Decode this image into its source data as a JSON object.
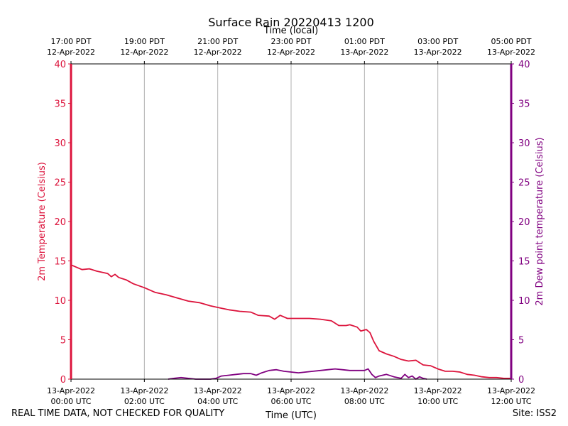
{
  "chart_data": {
    "type": "line",
    "title": "Surface Rain 20220413 1200",
    "top_axis_label": "Time (local)",
    "xlabel": "Time (UTC)",
    "ylabel_left": "2m Temperature (Celsius)",
    "ylabel_right": "2m Dew point temperature (Celsius)",
    "xlim_hours": [
      0,
      12
    ],
    "ylim": [
      0,
      40
    ],
    "yticks": [
      0,
      5,
      10,
      15,
      20,
      25,
      30,
      35,
      40
    ],
    "grid": "vertical",
    "bottom_ticks": [
      {
        "hour": 0,
        "line1": "13-Apr-2022",
        "line2": "00:00 UTC"
      },
      {
        "hour": 2,
        "line1": "13-Apr-2022",
        "line2": "02:00 UTC"
      },
      {
        "hour": 4,
        "line1": "13-Apr-2022",
        "line2": "04:00 UTC"
      },
      {
        "hour": 6,
        "line1": "13-Apr-2022",
        "line2": "06:00 UTC"
      },
      {
        "hour": 8,
        "line1": "13-Apr-2022",
        "line2": "08:00 UTC"
      },
      {
        "hour": 10,
        "line1": "13-Apr-2022",
        "line2": "10:00 UTC"
      },
      {
        "hour": 12,
        "line1": "13-Apr-2022",
        "line2": "12:00 UTC"
      }
    ],
    "top_ticks": [
      {
        "hour": 0,
        "line1": "17:00 PDT",
        "line2": "12-Apr-2022"
      },
      {
        "hour": 2,
        "line1": "19:00 PDT",
        "line2": "12-Apr-2022"
      },
      {
        "hour": 4,
        "line1": "21:00 PDT",
        "line2": "12-Apr-2022"
      },
      {
        "hour": 6,
        "line1": "23:00 PDT",
        "line2": "12-Apr-2022"
      },
      {
        "hour": 8,
        "line1": "01:00 PDT",
        "line2": "13-Apr-2022"
      },
      {
        "hour": 10,
        "line1": "03:00 PDT",
        "line2": "13-Apr-2022"
      },
      {
        "hour": 12,
        "line1": "05:00 PDT",
        "line2": "13-Apr-2022"
      }
    ],
    "series": [
      {
        "name": "2m Temperature",
        "color": "#dc143c",
        "points": [
          [
            0.0,
            14.5
          ],
          [
            0.15,
            14.2
          ],
          [
            0.3,
            13.9
          ],
          [
            0.5,
            14.0
          ],
          [
            0.7,
            13.7
          ],
          [
            0.9,
            13.5
          ],
          [
            1.0,
            13.4
          ],
          [
            1.1,
            13.0
          ],
          [
            1.2,
            13.3
          ],
          [
            1.3,
            12.9
          ],
          [
            1.5,
            12.6
          ],
          [
            1.7,
            12.1
          ],
          [
            2.0,
            11.6
          ],
          [
            2.3,
            11.0
          ],
          [
            2.6,
            10.7
          ],
          [
            2.9,
            10.3
          ],
          [
            3.2,
            9.9
          ],
          [
            3.5,
            9.7
          ],
          [
            3.8,
            9.3
          ],
          [
            4.1,
            9.0
          ],
          [
            4.3,
            8.8
          ],
          [
            4.6,
            8.6
          ],
          [
            4.9,
            8.5
          ],
          [
            5.1,
            8.1
          ],
          [
            5.4,
            8.0
          ],
          [
            5.55,
            7.6
          ],
          [
            5.7,
            8.1
          ],
          [
            5.9,
            7.7
          ],
          [
            6.2,
            7.7
          ],
          [
            6.5,
            7.7
          ],
          [
            6.8,
            7.6
          ],
          [
            7.1,
            7.4
          ],
          [
            7.3,
            6.8
          ],
          [
            7.5,
            6.8
          ],
          [
            7.6,
            6.9
          ],
          [
            7.8,
            6.6
          ],
          [
            7.9,
            6.1
          ],
          [
            8.05,
            6.3
          ],
          [
            8.15,
            5.9
          ],
          [
            8.25,
            4.8
          ],
          [
            8.4,
            3.6
          ],
          [
            8.6,
            3.2
          ],
          [
            8.8,
            2.9
          ],
          [
            9.0,
            2.5
          ],
          [
            9.2,
            2.3
          ],
          [
            9.4,
            2.4
          ],
          [
            9.6,
            1.8
          ],
          [
            9.8,
            1.7
          ],
          [
            10.0,
            1.3
          ],
          [
            10.2,
            1.0
          ],
          [
            10.4,
            1.0
          ],
          [
            10.6,
            0.9
          ],
          [
            10.8,
            0.6
          ],
          [
            11.0,
            0.5
          ],
          [
            11.2,
            0.3
          ],
          [
            11.4,
            0.2
          ],
          [
            11.6,
            0.2
          ],
          [
            11.8,
            0.1
          ],
          [
            12.0,
            0.1
          ]
        ]
      },
      {
        "name": "2m Dew point temperature",
        "color": "#800080",
        "points": [
          [
            2.65,
            0.0
          ],
          [
            2.8,
            0.1
          ],
          [
            3.0,
            0.2
          ],
          [
            3.2,
            0.1
          ],
          [
            3.4,
            0.0
          ],
          [
            3.6,
            0.0
          ],
          [
            3.8,
            0.0
          ],
          [
            3.95,
            0.1
          ],
          [
            4.1,
            0.4
          ],
          [
            4.3,
            0.5
          ],
          [
            4.5,
            0.6
          ],
          [
            4.7,
            0.7
          ],
          [
            4.9,
            0.7
          ],
          [
            5.05,
            0.5
          ],
          [
            5.2,
            0.8
          ],
          [
            5.4,
            1.1
          ],
          [
            5.6,
            1.2
          ],
          [
            5.8,
            1.0
          ],
          [
            6.0,
            0.9
          ],
          [
            6.2,
            0.8
          ],
          [
            6.4,
            0.9
          ],
          [
            6.6,
            1.0
          ],
          [
            6.8,
            1.1
          ],
          [
            7.0,
            1.2
          ],
          [
            7.2,
            1.3
          ],
          [
            7.4,
            1.2
          ],
          [
            7.6,
            1.1
          ],
          [
            7.8,
            1.1
          ],
          [
            8.0,
            1.1
          ],
          [
            8.1,
            1.3
          ],
          [
            8.2,
            0.6
          ],
          [
            8.3,
            0.2
          ],
          [
            8.4,
            0.4
          ],
          [
            8.6,
            0.6
          ],
          [
            8.8,
            0.3
          ],
          [
            9.0,
            0.1
          ],
          [
            9.1,
            0.6
          ],
          [
            9.2,
            0.2
          ],
          [
            9.3,
            0.4
          ],
          [
            9.4,
            0.0
          ],
          [
            9.5,
            0.3
          ],
          [
            9.6,
            0.1
          ],
          [
            9.7,
            0.0
          ]
        ]
      }
    ]
  },
  "footer": {
    "left_note": "REAL TIME DATA, NOT CHECKED FOR QUALITY",
    "site": "Site: ISS2"
  },
  "colors": {
    "temperature": "#dc143c",
    "dewpoint": "#800080",
    "grid": "#b0b0b0"
  }
}
